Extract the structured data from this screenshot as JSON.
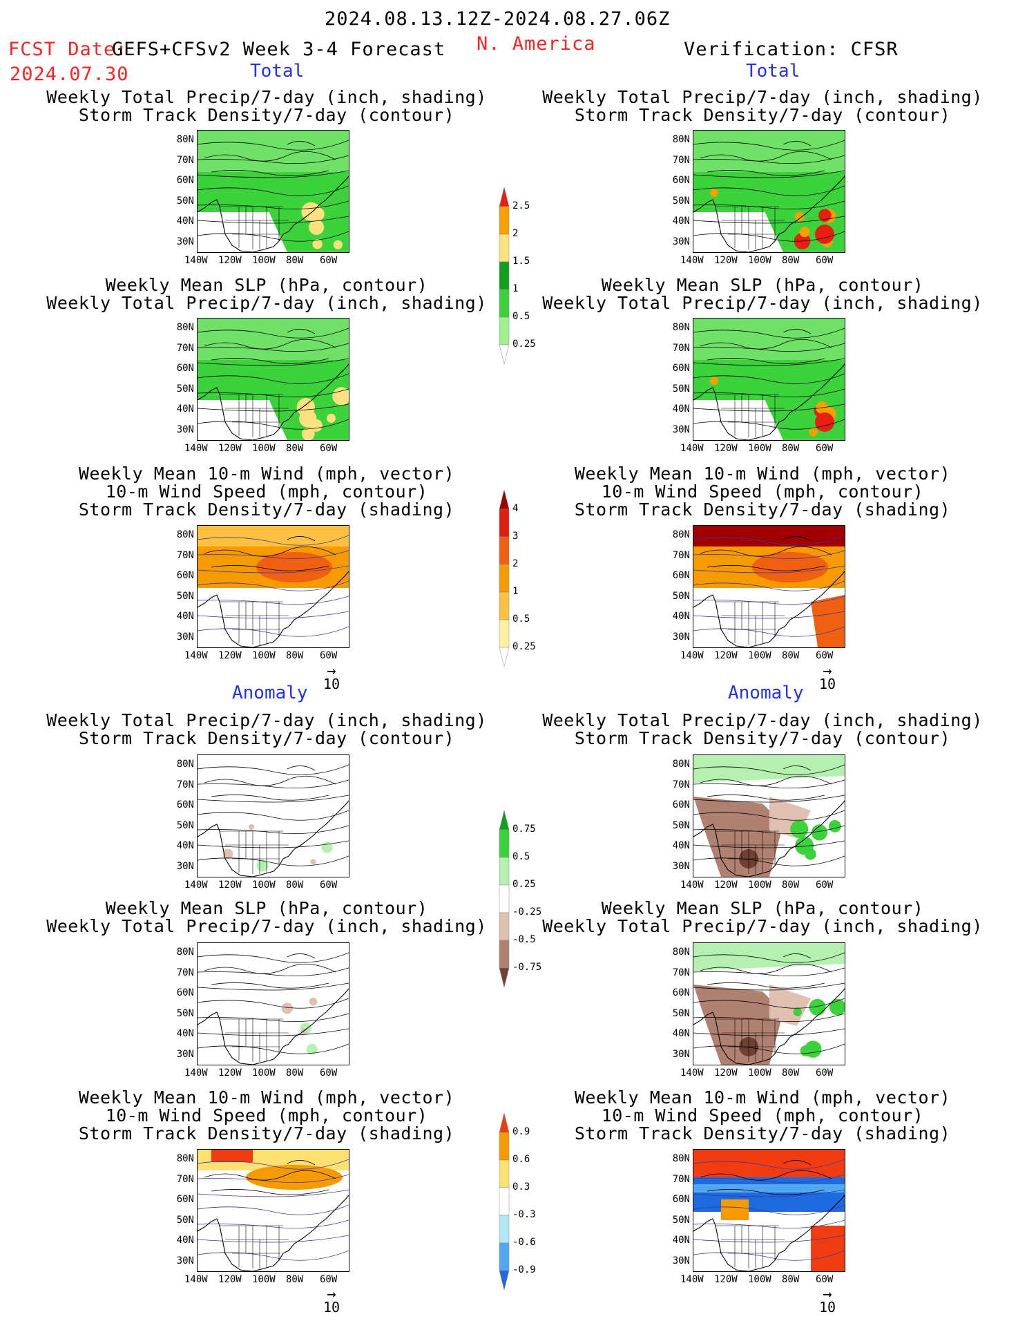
{
  "header": {
    "date_range": "2024.08.13.12Z-2024.08.27.06Z",
    "fcst_label": "FCST Date:",
    "fcst_model": "GEFS+CFSv2 Week 3-4 Forecast",
    "region": "N. America",
    "verification": "Verification: CFSR",
    "fcst_date": "2024.07.30"
  },
  "sections": {
    "total": "Total",
    "anomaly": "Anomaly"
  },
  "titles": {
    "precip_storm": [
      "Weekly Total Precip/7-day (inch, shading)",
      "Storm Track Density/7-day (contour)"
    ],
    "slp_precip": [
      "Weekly Mean SLP (hPa, contour)",
      "Weekly Total Precip/7-day (inch, shading)"
    ],
    "wind_storm": [
      "Weekly Mean 10-m Wind (mph, vector)",
      "10-m Wind Speed (mph, contour)",
      "Storm Track Density/7-day (shading)"
    ]
  },
  "axes": {
    "lat": [
      "80N",
      "70N",
      "60N",
      "50N",
      "40N",
      "30N"
    ],
    "lon": [
      "140W",
      "120W",
      "100W",
      "80W",
      "60W"
    ]
  },
  "vector_ref": "10",
  "colorbars": {
    "precip_total": {
      "labels": [
        "2.5",
        "2",
        "1.5",
        "1",
        "0.5",
        "0.25"
      ],
      "colors": [
        "#e81e10",
        "#f7a000",
        "#fde080",
        "#10a020",
        "#3cd23c",
        "#a0f090"
      ]
    },
    "storm_total": {
      "labels": [
        "4",
        "3",
        "2",
        "1",
        "0.5",
        "0.25"
      ],
      "colors": [
        "#a00000",
        "#e01e10",
        "#f06010",
        "#f79a00",
        "#fdc040",
        "#fff0a0"
      ]
    },
    "precip_anom": {
      "labels": [
        "0.75",
        "0.5",
        "0.25",
        "-0.25",
        "-0.5",
        "-0.75"
      ],
      "colors": [
        "#10a020",
        "#3cd23c",
        "#b4f0b0",
        "#ffffff",
        "#e0c0b0",
        "#b08070",
        "#704030"
      ]
    },
    "storm_anom": {
      "labels": [
        "0.9",
        "0.6",
        "0.3",
        "-0.3",
        "-0.6",
        "-0.9"
      ],
      "colors": [
        "#f03c10",
        "#f79a00",
        "#fde070",
        "#ffffff",
        "#b0e8f8",
        "#50a8f0",
        "#1e6ae0"
      ]
    }
  }
}
